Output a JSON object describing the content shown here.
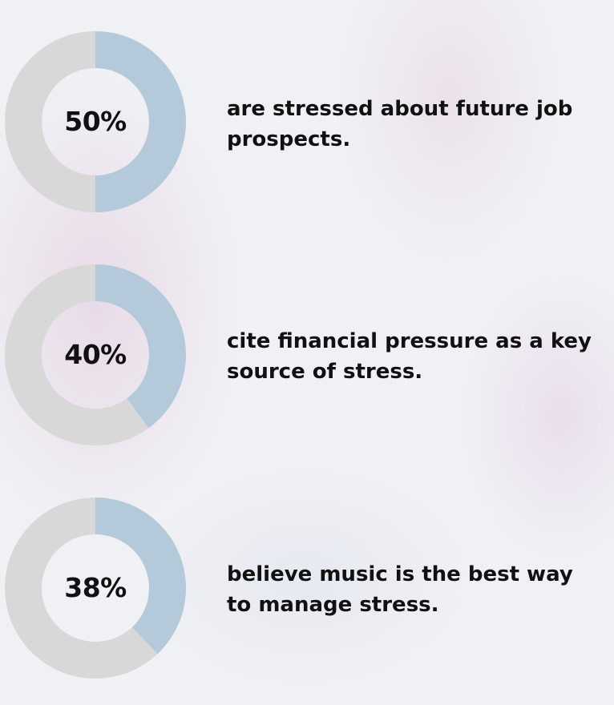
{
  "colors": {
    "filled": "#b4c9d9",
    "remaining": "#d8d8d8"
  },
  "chart_data": [
    {
      "type": "pie",
      "variant": "donut",
      "values": [
        50,
        50
      ],
      "label": "50%",
      "text": "are stressed about future job prospects."
    },
    {
      "type": "pie",
      "variant": "donut",
      "values": [
        40,
        60
      ],
      "label": "40%",
      "text": "cite financial pressure as a key source of stress."
    },
    {
      "type": "pie",
      "variant": "donut",
      "values": [
        38,
        62
      ],
      "label": "38%",
      "text": "believe music is the best way to manage stress."
    }
  ]
}
